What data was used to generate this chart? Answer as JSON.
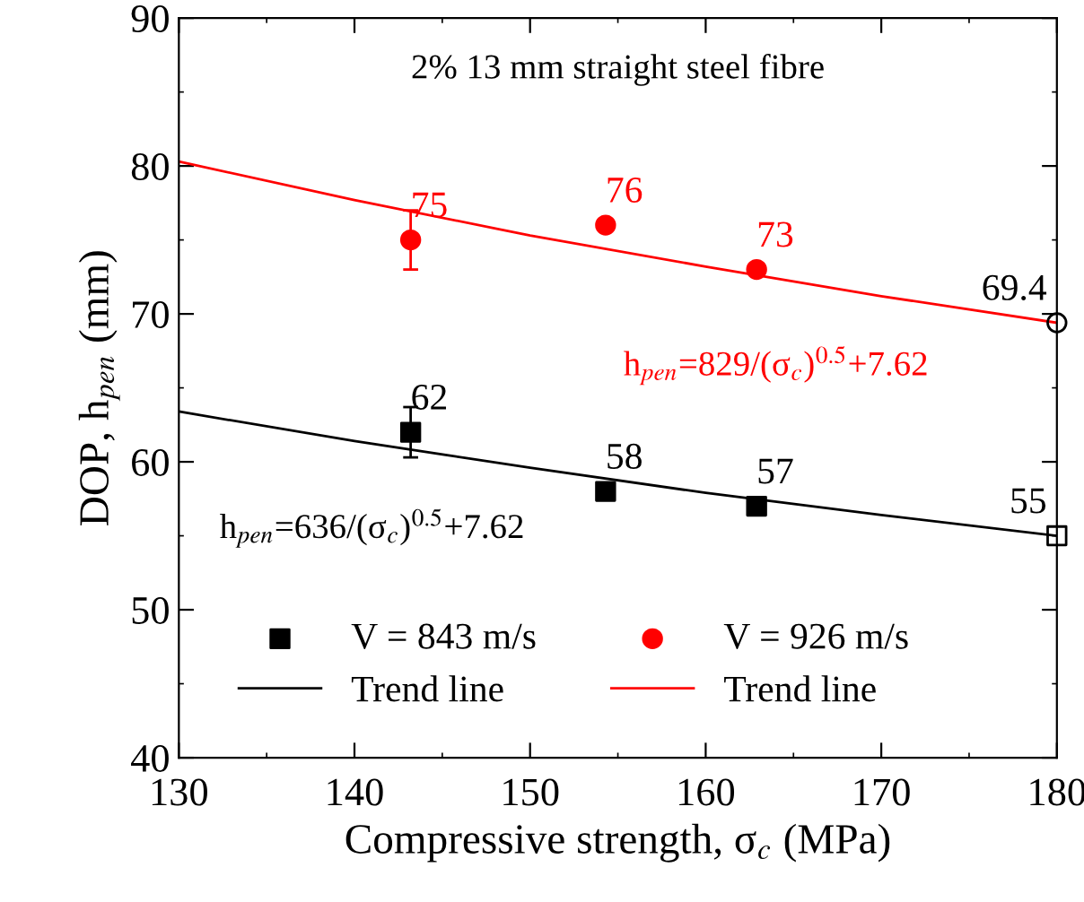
{
  "chart_data": {
    "type": "scatter",
    "xlabel": "Compressive strength, σ$_{c}$ (MPa)",
    "ylabel": "DOP, h$_{pen}$ (mm)",
    "xlim": [
      130,
      180
    ],
    "xticks": [
      130,
      140,
      150,
      160,
      170,
      180
    ],
    "ylim": [
      40,
      90
    ],
    "yticks": [
      40,
      50,
      60,
      70,
      80,
      90
    ],
    "grid": false,
    "legend": "bottom left",
    "series": [
      {
        "name": "V = 843 m/s",
        "marker": "square",
        "color": "#000000",
        "x": [
          143.2,
          154.3,
          162.9
        ],
        "values": [
          62,
          58,
          57
        ],
        "errors": [
          1.7,
          null,
          null
        ],
        "value_labels": [
          "62",
          "58",
          "57"
        ]
      },
      {
        "name": "Trend line",
        "type": "line",
        "marker": "none",
        "color": "#000000",
        "x": [
          130,
          140,
          150,
          160,
          170,
          180
        ],
        "values": [
          63.4,
          61.4,
          59.6,
          57.9,
          56.4,
          55.0
        ]
      },
      {
        "name": "V = 926 m/s",
        "marker": "circle",
        "color": "#ff0000",
        "x": [
          143.2,
          154.3,
          162.9
        ],
        "values": [
          75,
          76,
          73
        ],
        "errors": [
          2,
          null,
          null
        ],
        "value_labels": [
          "75",
          "76",
          "73"
        ]
      },
      {
        "name": "Trend line",
        "type": "line",
        "marker": "none",
        "color": "#ff0000",
        "x": [
          130,
          140,
          150,
          160,
          170,
          180
        ],
        "values": [
          80.3,
          77.7,
          75.3,
          73.2,
          71.2,
          69.4
        ]
      },
      {
        "marker": "square",
        "color": "#000000",
        "x": [
          180
        ],
        "values": [
          55
        ],
        "value_labels": [
          "55"
        ]
      },
      {
        "marker": "circle",
        "color": "#000000",
        "x": [
          180
        ],
        "values": [
          69.4
        ],
        "value_labels": [
          "69.4"
        ]
      }
    ],
    "annotations": [
      "2% 13 mm straight steel fibre",
      "h$_{pen}$=829/(σ$_{c}$)$^{0.5}$+7.62",
      "h$_{pen}$=636/(σ$_{c}$)$^{0.5}$+7.62"
    ]
  }
}
